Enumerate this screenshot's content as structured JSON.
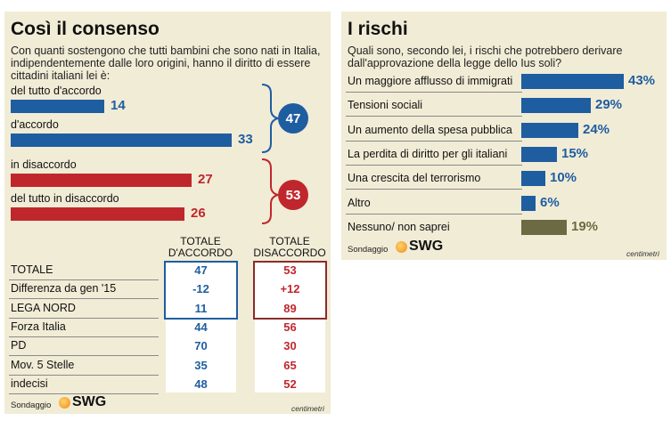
{
  "colors": {
    "blue": "#1f5da1",
    "red": "#c0272d",
    "olive": "#6b6a43",
    "panel": "#f1ecd6"
  },
  "left": {
    "title": "Così il consenso",
    "question": "Con quanti sostengono che tutti bambini che sono nati in Italia, indipendentemente dalle loro origini, hanno il diritto di essere cittadini italiani lei è:",
    "totals": {
      "agree": "47",
      "disagree": "53"
    },
    "footer": {
      "sondaggio": "Sondaggio",
      "brand": "SWG",
      "credit": "centimetri"
    }
  },
  "table": {
    "headers": [
      "TOTALE D'ACCORDO",
      "TOTALE DISACCORDO"
    ],
    "rows": [
      {
        "label": "TOTALE",
        "agree": "47",
        "disagree": "53"
      },
      {
        "label": "Differenza da gen '15",
        "agree": "-12",
        "disagree": "+12"
      },
      {
        "label": "LEGA NORD",
        "agree": "11",
        "disagree": "89"
      },
      {
        "label": "Forza Italia",
        "agree": "44",
        "disagree": "56"
      },
      {
        "label": "PD",
        "agree": "70",
        "disagree": "30"
      },
      {
        "label": "Mov. 5 Stelle",
        "agree": "35",
        "disagree": "65"
      },
      {
        "label": "indecisi",
        "agree": "48",
        "disagree": "52"
      }
    ]
  },
  "right": {
    "title": "I rischi",
    "question": "Quali sono, secondo lei, i rischi che potrebbero derivare dall'approvazione della legge dello Ius soli?",
    "footer": {
      "sondaggio": "Sondaggio",
      "brand": "SWG",
      "credit": "centimetri"
    }
  },
  "chart_data": [
    {
      "type": "bar",
      "orientation": "horizontal",
      "categories": [
        "del tutto d'accordo",
        "d'accordo",
        "in disaccordo",
        "del tutto in disaccordo"
      ],
      "values": [
        14,
        33,
        27,
        26
      ],
      "labels": [
        "14",
        "33",
        "27",
        "26"
      ],
      "colors": [
        "#1f5da1",
        "#1f5da1",
        "#c0272d",
        "#c0272d"
      ],
      "groups": [
        {
          "members": [
            0,
            1
          ],
          "total": "47",
          "color": "#1f5da1"
        },
        {
          "members": [
            2,
            3
          ],
          "total": "53",
          "color": "#c0272d"
        }
      ],
      "xlim": [
        0,
        33
      ]
    },
    {
      "type": "bar",
      "orientation": "horizontal",
      "categories": [
        "Un maggiore afflusso di immigrati",
        "Tensioni sociali",
        "Un aumento della spesa pubblica",
        "La perdita di diritto per gli italiani",
        "Una crescita del terrorismo",
        "Altro",
        "Nessuno/ non saprei"
      ],
      "values": [
        43,
        29,
        24,
        15,
        10,
        6,
        19
      ],
      "labels": [
        "43%",
        "29%",
        "24%",
        "15%",
        "10%",
        "6%",
        "19%"
      ],
      "colors": [
        "#1f5da1",
        "#1f5da1",
        "#1f5da1",
        "#1f5da1",
        "#1f5da1",
        "#1f5da1",
        "#6b6a43"
      ],
      "xlim": [
        0,
        43
      ]
    }
  ]
}
